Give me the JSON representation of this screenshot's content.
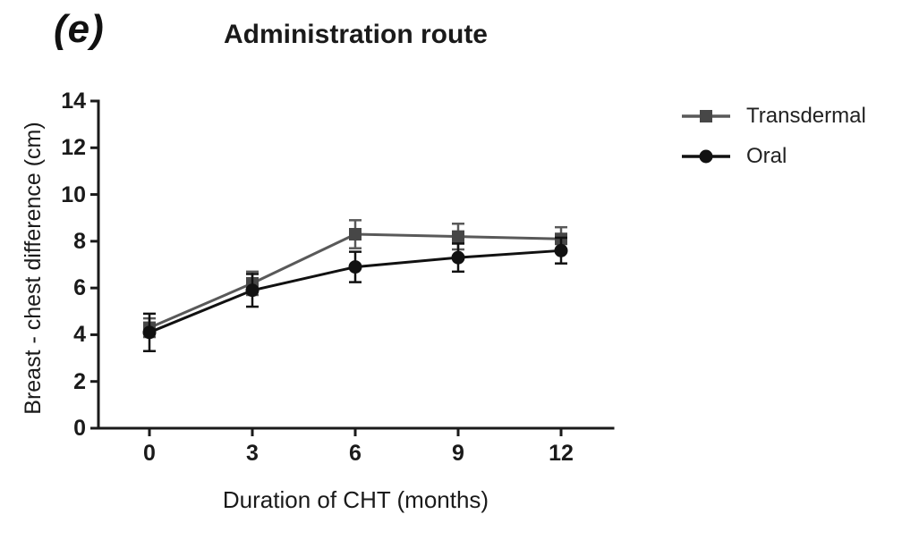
{
  "panel_label": "(e)",
  "title": "Administration route",
  "colors": {
    "background": "#ffffff",
    "axis": "#1a1a1a",
    "text": "#1a1a1a",
    "transdermal": "#595959",
    "transdermal_marker": "#474747",
    "oral": "#111111"
  },
  "legend": {
    "items": [
      {
        "label": "Transdermal",
        "marker": "square"
      },
      {
        "label": "Oral",
        "marker": "circle"
      }
    ]
  },
  "chart_data": {
    "type": "line",
    "title": "Administration route",
    "xlabel": "Duration of CHT (months)",
    "ylabel": "Breast - chest difference (cm)",
    "x": [
      0,
      3,
      6,
      9,
      12
    ],
    "xticks": [
      0,
      3,
      6,
      9,
      12
    ],
    "yticks": [
      0,
      2,
      4,
      6,
      8,
      10,
      12,
      14
    ],
    "xlim": [
      -1.5,
      13.5
    ],
    "ylim": [
      0,
      14
    ],
    "grid": false,
    "legend_position": "right",
    "error_bars": true,
    "series": [
      {
        "name": "Transdermal",
        "marker": "square",
        "color": "#595959",
        "marker_color": "#474747",
        "values": [
          4.3,
          6.2,
          8.3,
          8.2,
          8.1
        ],
        "errors": [
          0.4,
          0.5,
          0.6,
          0.55,
          0.5
        ]
      },
      {
        "name": "Oral",
        "marker": "circle",
        "color": "#111111",
        "marker_color": "#111111",
        "values": [
          4.1,
          5.9,
          6.9,
          7.3,
          7.6
        ],
        "errors": [
          0.8,
          0.7,
          0.65,
          0.6,
          0.55
        ]
      }
    ]
  }
}
